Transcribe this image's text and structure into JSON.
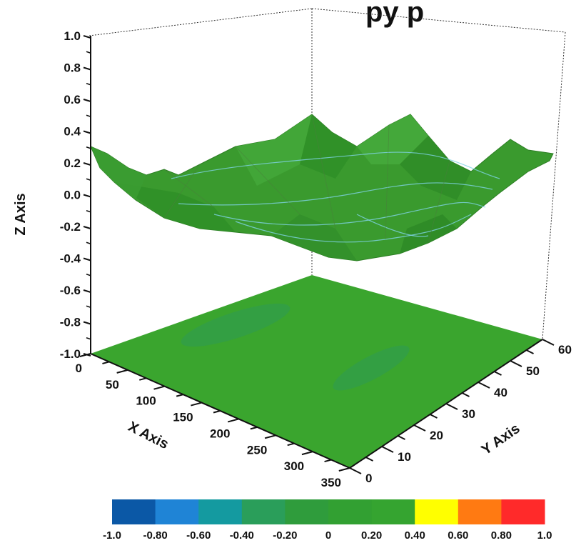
{
  "chart_data": {
    "type": "surface3d",
    "title": "",
    "title_partial_visible": "py p",
    "zlabel": "Z Axis",
    "xlabel": "X Axis",
    "ylabel": "Y Axis",
    "z_ticks": [
      "1.0",
      "0.8",
      "0.6",
      "0.4",
      "0.2",
      "0.0",
      "-0.2",
      "-0.4",
      "-0.6",
      "-0.8",
      "-1.0"
    ],
    "x_ticks": [
      "0",
      "50",
      "100",
      "150",
      "200",
      "250",
      "300",
      "350"
    ],
    "y_ticks": [
      "0",
      "10",
      "20",
      "30",
      "40",
      "50",
      "60"
    ],
    "xlim": [
      0,
      350
    ],
    "ylim": [
      0,
      60
    ],
    "zlim": [
      -1.0,
      1.0
    ],
    "surface_color": "#3a9a2e",
    "floor_color": "#3aa52e",
    "colorbar": {
      "labels": [
        "-1.0",
        "-0.80",
        "-0.60",
        "-0.40",
        "-0.20",
        "0",
        "0.20",
        "0.40",
        "0.60",
        "0.80",
        "1.0"
      ],
      "colors": [
        "#0b58a6",
        "#1f84d6",
        "#149aa0",
        "#2a9e5a",
        "#2f9c3c",
        "#32a032",
        "#35a430",
        "#ffff00",
        "#ff7a12",
        "#ff2a2a"
      ]
    },
    "surface_profile": {
      "note_free": true,
      "z_values_top_ridge": [
        0.35,
        0.15,
        0.2,
        0.12,
        0.25,
        0.35,
        0.45,
        0.3,
        0.5,
        0.32,
        0.3,
        0.3
      ]
    }
  }
}
